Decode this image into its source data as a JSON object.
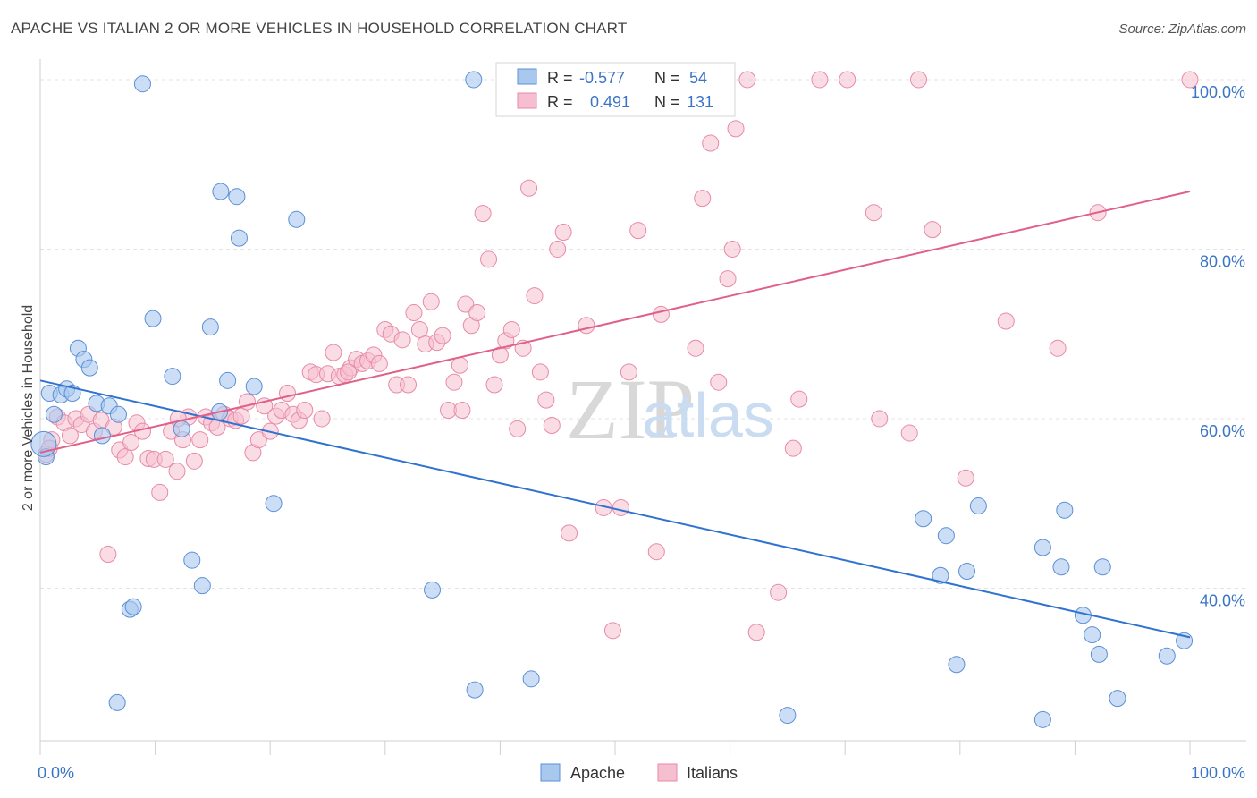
{
  "header": {
    "title": "APACHE VS ITALIAN 2 OR MORE VEHICLES IN HOUSEHOLD CORRELATION CHART",
    "source": "Source: ZipAtlas.com"
  },
  "watermark": {
    "zip": "ZIP",
    "atlas": "atlas"
  },
  "colors": {
    "apache_fill": "#a8c8ee",
    "apache_stroke": "#5b8fd6",
    "apache_line": "#2f72d0",
    "italian_fill": "#f6bfd0",
    "italian_stroke": "#e78aa8",
    "italian_line": "#e0608a",
    "tick_label": "#3a74c6",
    "grid": "#e3e3e3"
  },
  "stats_legend": {
    "rows": [
      {
        "r_label": "R =",
        "r_value": "-0.577",
        "n_label": "N =",
        "n_value": "54"
      },
      {
        "r_label": "R =",
        "r_value": "0.491",
        "n_label": "N =",
        "n_value": "131"
      }
    ]
  },
  "chart_data": {
    "type": "scatter",
    "title": "APACHE VS ITALIAN 2 OR MORE VEHICLES IN HOUSEHOLD CORRELATION CHART",
    "xlabel": "",
    "ylabel": "2 or more Vehicles in Household",
    "xlim": [
      0,
      100
    ],
    "ylim": [
      22,
      102
    ],
    "x_tick_labels": [
      "0.0%",
      "100.0%"
    ],
    "y_ticks": [
      40,
      60,
      80,
      100
    ],
    "y_tick_labels": [
      "40.0%",
      "60.0%",
      "80.0%",
      "100.0%"
    ],
    "grid": true,
    "legend_position": "bottom-center",
    "series": [
      {
        "name": "Apache",
        "r": -0.577,
        "n": 54,
        "trend": {
          "x": [
            0,
            100
          ],
          "y": [
            64.5,
            34.2
          ]
        },
        "points": [
          [
            0.5,
            55.5
          ],
          [
            0.8,
            63.0
          ],
          [
            1.2,
            60.5
          ],
          [
            1.8,
            62.8
          ],
          [
            2.3,
            63.5
          ],
          [
            2.8,
            63.0
          ],
          [
            3.3,
            68.3
          ],
          [
            3.8,
            67.0
          ],
          [
            4.3,
            66.0
          ],
          [
            4.9,
            61.8
          ],
          [
            5.4,
            58.0
          ],
          [
            6.0,
            61.5
          ],
          [
            6.8,
            60.5
          ],
          [
            7.8,
            37.5
          ],
          [
            8.1,
            37.8
          ],
          [
            6.7,
            26.5
          ],
          [
            8.9,
            99.5
          ],
          [
            9.8,
            71.8
          ],
          [
            11.5,
            65.0
          ],
          [
            12.3,
            58.8
          ],
          [
            13.2,
            43.3
          ],
          [
            14.1,
            40.3
          ],
          [
            14.8,
            70.8
          ],
          [
            15.7,
            86.8
          ],
          [
            16.3,
            64.5
          ],
          [
            17.1,
            86.2
          ],
          [
            17.3,
            81.3
          ],
          [
            15.6,
            60.8
          ],
          [
            18.6,
            63.8
          ],
          [
            20.3,
            50.0
          ],
          [
            22.3,
            83.5
          ],
          [
            34.1,
            39.8
          ],
          [
            37.7,
            100.0
          ],
          [
            37.8,
            28.0
          ],
          [
            42.7,
            29.3
          ],
          [
            65.0,
            25.0
          ],
          [
            76.8,
            48.2
          ],
          [
            78.3,
            41.5
          ],
          [
            78.8,
            46.2
          ],
          [
            79.7,
            31.0
          ],
          [
            80.6,
            42.0
          ],
          [
            81.6,
            49.7
          ],
          [
            87.2,
            24.5
          ],
          [
            87.2,
            44.8
          ],
          [
            88.8,
            42.5
          ],
          [
            89.1,
            49.2
          ],
          [
            90.7,
            36.8
          ],
          [
            91.5,
            34.5
          ],
          [
            92.1,
            32.2
          ],
          [
            92.4,
            42.5
          ],
          [
            93.7,
            27.0
          ],
          [
            98.0,
            32.0
          ],
          [
            99.5,
            33.8
          ],
          [
            0.3,
            57.0
          ]
        ]
      },
      {
        "name": "Italians",
        "r": 0.491,
        "n": 131,
        "trend": {
          "x": [
            0,
            100
          ],
          "y": [
            56.0,
            86.8
          ]
        },
        "points": [
          [
            0.5,
            55.8
          ],
          [
            1.0,
            57.5
          ],
          [
            1.5,
            60.2
          ],
          [
            2.1,
            59.5
          ],
          [
            2.6,
            58.0
          ],
          [
            3.1,
            60.0
          ],
          [
            3.6,
            59.3
          ],
          [
            4.2,
            60.5
          ],
          [
            4.7,
            58.5
          ],
          [
            5.3,
            59.8
          ],
          [
            5.9,
            44.0
          ],
          [
            6.4,
            59.0
          ],
          [
            6.9,
            56.3
          ],
          [
            7.4,
            55.5
          ],
          [
            7.9,
            57.2
          ],
          [
            8.4,
            59.5
          ],
          [
            8.9,
            58.5
          ],
          [
            9.4,
            55.3
          ],
          [
            9.9,
            55.2
          ],
          [
            10.4,
            51.3
          ],
          [
            10.9,
            55.2
          ],
          [
            11.4,
            58.5
          ],
          [
            11.9,
            53.8
          ],
          [
            12.4,
            57.5
          ],
          [
            12.9,
            60.2
          ],
          [
            13.4,
            55.0
          ],
          [
            13.9,
            57.5
          ],
          [
            14.4,
            60.2
          ],
          [
            14.9,
            59.5
          ],
          [
            15.4,
            59.0
          ],
          [
            16.0,
            60.5
          ],
          [
            16.5,
            60.0
          ],
          [
            17.0,
            59.8
          ],
          [
            17.5,
            60.3
          ],
          [
            18.0,
            62.0
          ],
          [
            18.5,
            56.0
          ],
          [
            19.0,
            57.5
          ],
          [
            19.5,
            61.5
          ],
          [
            20.0,
            58.5
          ],
          [
            20.5,
            60.3
          ],
          [
            21.0,
            61.0
          ],
          [
            21.5,
            63.0
          ],
          [
            22.0,
            60.5
          ],
          [
            22.5,
            59.8
          ],
          [
            23.0,
            61.0
          ],
          [
            23.5,
            65.5
          ],
          [
            24.0,
            65.2
          ],
          [
            24.5,
            60.0
          ],
          [
            25.0,
            65.3
          ],
          [
            25.5,
            67.8
          ],
          [
            26.0,
            65.0
          ],
          [
            26.5,
            65.2
          ],
          [
            27.0,
            66.0
          ],
          [
            27.5,
            67.0
          ],
          [
            28.0,
            66.5
          ],
          [
            28.5,
            66.8
          ],
          [
            29.0,
            67.5
          ],
          [
            29.5,
            66.5
          ],
          [
            30.0,
            70.5
          ],
          [
            30.5,
            70.0
          ],
          [
            31.0,
            64.0
          ],
          [
            31.5,
            69.3
          ],
          [
            32.0,
            64.0
          ],
          [
            32.5,
            72.5
          ],
          [
            33.0,
            70.5
          ],
          [
            33.5,
            68.8
          ],
          [
            34.0,
            73.8
          ],
          [
            34.5,
            69.0
          ],
          [
            35.0,
            69.8
          ],
          [
            35.5,
            61.0
          ],
          [
            36.0,
            64.3
          ],
          [
            36.5,
            66.3
          ],
          [
            37.0,
            73.5
          ],
          [
            37.5,
            71.0
          ],
          [
            38.0,
            72.5
          ],
          [
            38.5,
            84.2
          ],
          [
            39.0,
            78.8
          ],
          [
            39.5,
            64.0
          ],
          [
            40.0,
            67.5
          ],
          [
            40.5,
            69.2
          ],
          [
            41.0,
            70.5
          ],
          [
            41.5,
            58.8
          ],
          [
            42.0,
            68.3
          ],
          [
            42.5,
            87.2
          ],
          [
            43.0,
            74.5
          ],
          [
            43.5,
            65.5
          ],
          [
            44.0,
            62.2
          ],
          [
            44.5,
            59.2
          ],
          [
            45.0,
            80.0
          ],
          [
            45.5,
            82.0
          ],
          [
            46.0,
            46.5
          ],
          [
            47.5,
            71.0
          ],
          [
            49.0,
            49.5
          ],
          [
            49.8,
            35.0
          ],
          [
            50.5,
            49.5
          ],
          [
            51.2,
            65.5
          ],
          [
            52.0,
            82.2
          ],
          [
            52.7,
            100.0
          ],
          [
            53.3,
            100.0
          ],
          [
            53.6,
            44.3
          ],
          [
            54.0,
            72.3
          ],
          [
            55.0,
            100.0
          ],
          [
            57.0,
            68.3
          ],
          [
            57.6,
            86.0
          ],
          [
            58.3,
            92.5
          ],
          [
            58.6,
            100.0
          ],
          [
            59.0,
            64.3
          ],
          [
            59.8,
            76.5
          ],
          [
            60.2,
            80.0
          ],
          [
            60.5,
            94.2
          ],
          [
            61.5,
            100.0
          ],
          [
            62.3,
            34.8
          ],
          [
            64.2,
            39.5
          ],
          [
            65.5,
            56.5
          ],
          [
            66.0,
            62.3
          ],
          [
            67.8,
            100.0
          ],
          [
            70.2,
            100.0
          ],
          [
            72.5,
            84.3
          ],
          [
            73.0,
            60.0
          ],
          [
            75.6,
            58.3
          ],
          [
            76.4,
            100.0
          ],
          [
            77.6,
            82.3
          ],
          [
            80.5,
            53.0
          ],
          [
            84.0,
            71.5
          ],
          [
            88.5,
            68.3
          ],
          [
            92.0,
            84.3
          ],
          [
            100.0,
            100.0
          ],
          [
            0.8,
            56.5
          ],
          [
            12.0,
            60.0
          ],
          [
            26.8,
            65.5
          ],
          [
            36.7,
            61.0
          ]
        ]
      }
    ]
  },
  "bottom_legend": {
    "items": [
      {
        "label": "Apache"
      },
      {
        "label": "Italians"
      }
    ]
  }
}
